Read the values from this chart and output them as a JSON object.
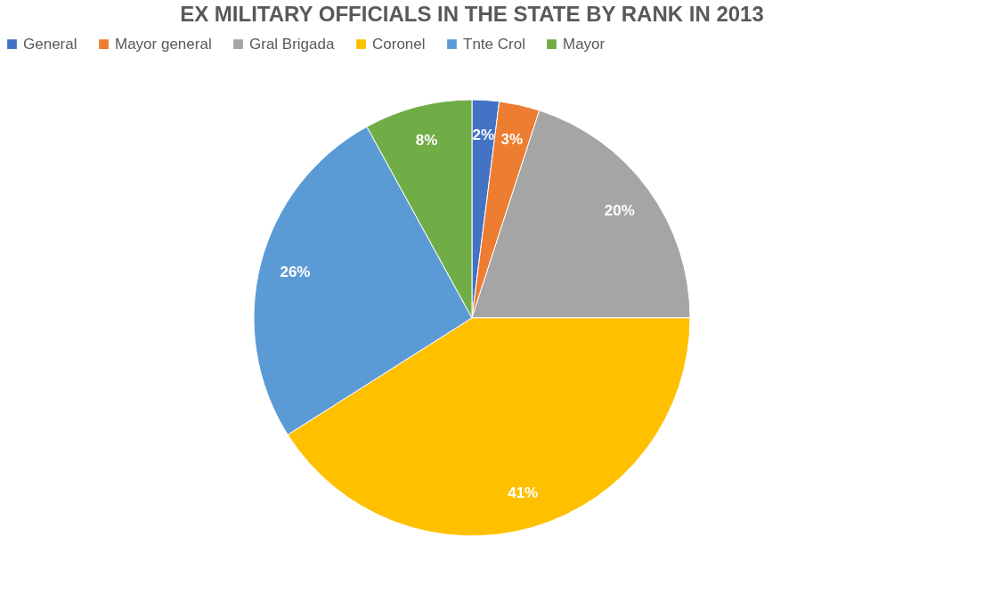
{
  "chart_data": {
    "type": "pie",
    "title": "EX MILITARY OFFICIALS IN THE STATE BY RANK IN 2013",
    "categories": [
      "General",
      "Mayor general",
      "Gral Brigada",
      "Coronel",
      "Tnte Crol",
      "Mayor"
    ],
    "values": [
      2,
      3,
      20,
      41,
      26,
      8
    ],
    "value_labels": [
      "2%",
      "3%",
      "20%",
      "41%",
      "26%",
      "8%"
    ],
    "colors": [
      "#4472c4",
      "#ed7d31",
      "#a5a5a5",
      "#ffc000",
      "#5b9bd5",
      "#70ad47"
    ],
    "legend": "top"
  }
}
